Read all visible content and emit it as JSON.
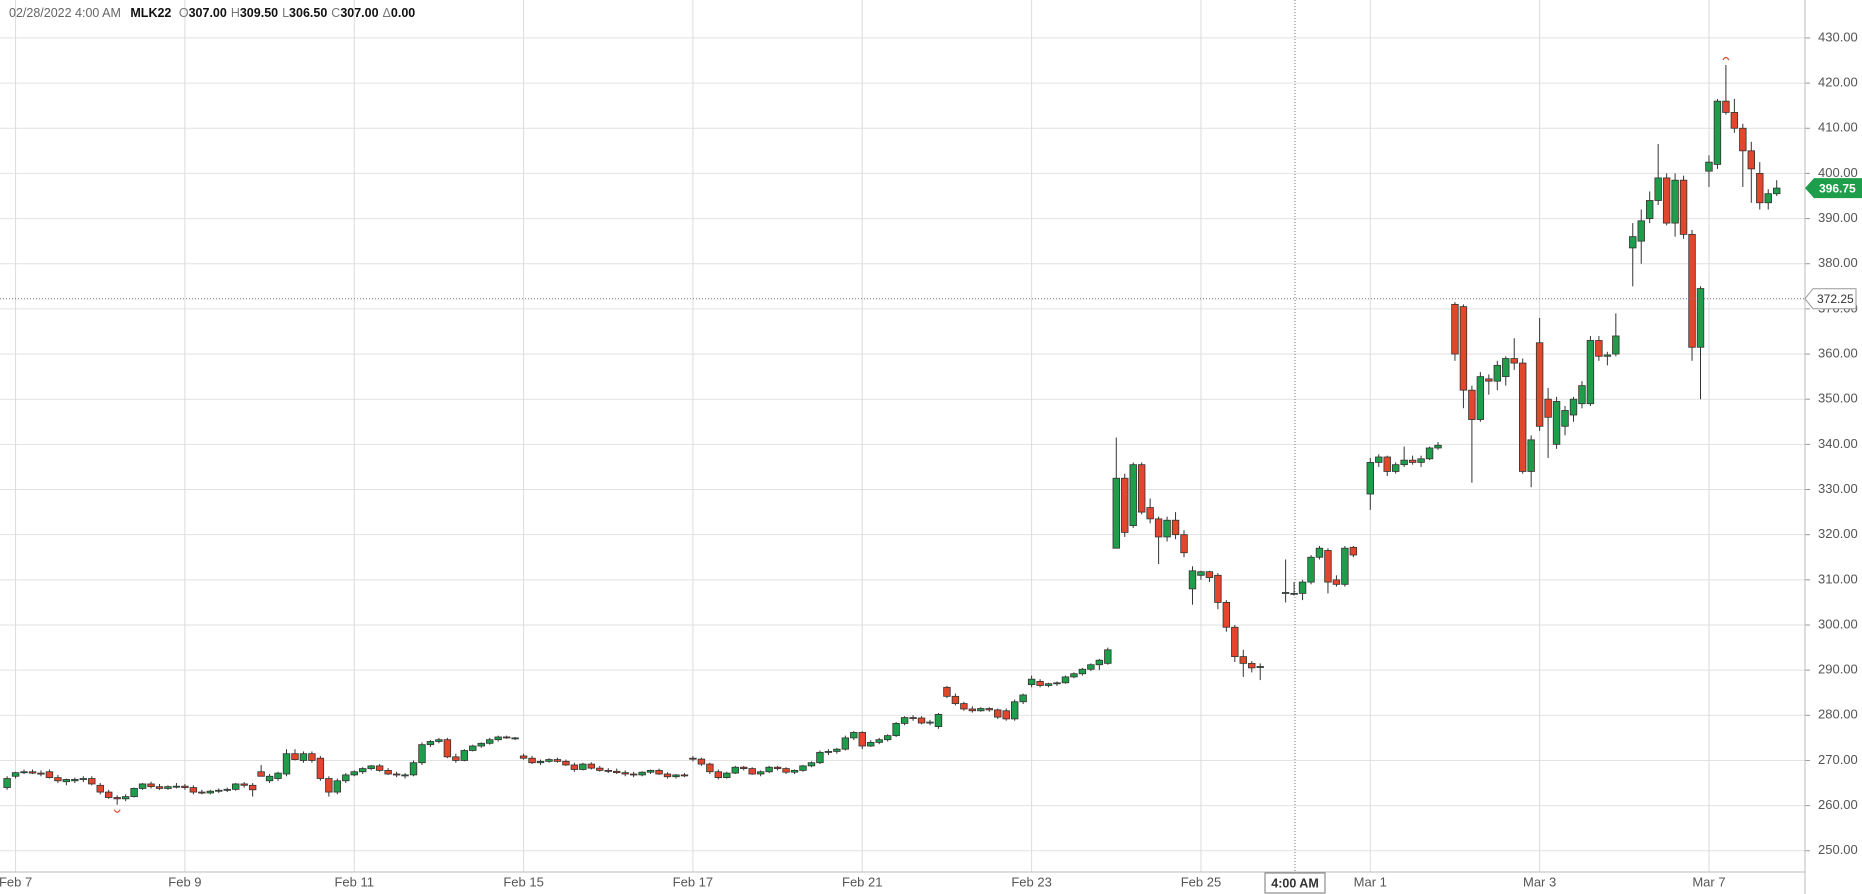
{
  "chart_data": {
    "type": "candlestick",
    "info": {
      "datetime": "02/28/2022 4:00 AM",
      "symbol": "MLK22",
      "fields": [
        {
          "key": "O",
          "text": "307.00"
        },
        {
          "key": "H",
          "text": "309.50"
        },
        {
          "key": "L",
          "text": "306.50"
        },
        {
          "key": "C",
          "text": "307.00"
        },
        {
          "key": "Δ",
          "text": "0.00"
        }
      ]
    },
    "categories": [
      null,
      "Feb 7",
      null,
      null,
      null,
      null,
      null,
      null,
      null,
      null,
      null,
      null,
      null,
      null,
      null,
      null,
      null,
      null,
      null,
      null,
      null,
      "Feb 9",
      null,
      null,
      null,
      null,
      null,
      null,
      null,
      null,
      null,
      null,
      null,
      null,
      null,
      null,
      null,
      null,
      null,
      null,
      null,
      "Feb 11",
      null,
      null,
      null,
      null,
      null,
      null,
      null,
      null,
      null,
      null,
      null,
      null,
      null,
      null,
      null,
      null,
      null,
      null,
      null,
      "Feb 15",
      null,
      null,
      null,
      null,
      null,
      null,
      null,
      null,
      null,
      null,
      null,
      null,
      null,
      null,
      null,
      null,
      null,
      null,
      null,
      "Feb 17",
      null,
      null,
      null,
      null,
      null,
      null,
      null,
      null,
      null,
      null,
      null,
      null,
      null,
      null,
      null,
      null,
      null,
      null,
      null,
      "Feb 21",
      null,
      null,
      null,
      null,
      null,
      null,
      null,
      null,
      null,
      null,
      null,
      null,
      null,
      null,
      null,
      null,
      null,
      null,
      null,
      "Feb 23",
      null,
      null,
      null,
      null,
      null,
      null,
      null,
      null,
      null,
      null,
      null,
      null,
      null,
      null,
      null,
      null,
      null,
      null,
      null,
      "Feb 25",
      null,
      null,
      null,
      null,
      null,
      null,
      null,
      null,
      null,
      null,
      null,
      null,
      null,
      null,
      null,
      null,
      null,
      null,
      null,
      "Mar 1",
      null,
      null,
      null,
      null,
      null,
      null,
      null,
      null,
      null,
      null,
      null,
      null,
      null,
      null,
      null,
      null,
      null,
      null,
      null,
      "Mar 3",
      null,
      null,
      null,
      null,
      null,
      null,
      null,
      null,
      null,
      null,
      null,
      null,
      null,
      null,
      null,
      null,
      null,
      null,
      null,
      "Mar 7",
      null,
      null,
      null,
      null,
      null,
      null,
      null,
      null
    ],
    "ohlc": [
      [
        264,
        266.5,
        263.5,
        266
      ],
      [
        266.5,
        267.5,
        266,
        267.3
      ],
      [
        267.3,
        268,
        267,
        267.5
      ],
      [
        267.5,
        268,
        267,
        267.2
      ],
      [
        267.2,
        267.8,
        266.5,
        267
      ],
      [
        267.5,
        268,
        266,
        266.2
      ],
      [
        266.2,
        266.8,
        265,
        265.5
      ],
      [
        265.3,
        266,
        264.5,
        265.8
      ],
      [
        265.5,
        266.2,
        265,
        265.8
      ],
      [
        265.8,
        266.5,
        265.2,
        266
      ],
      [
        266,
        266.5,
        264.5,
        264.8
      ],
      [
        264.5,
        265,
        262.5,
        263
      ],
      [
        263,
        263.5,
        261.5,
        261.8
      ],
      [
        261.8,
        262.3,
        260.2,
        261.5
      ],
      [
        261.5,
        262.5,
        261,
        262
      ],
      [
        262,
        264,
        261.8,
        263.8
      ],
      [
        263.8,
        265,
        263.5,
        264.8
      ],
      [
        264.8,
        265.3,
        263.8,
        264.2
      ],
      [
        264.2,
        264.8,
        263.5,
        263.8
      ],
      [
        263.8,
        264.5,
        263.5,
        264.2
      ],
      [
        264.2,
        265,
        263.8,
        264.3
      ],
      [
        264.3,
        264.8,
        263.5,
        264
      ],
      [
        264,
        264.5,
        262.5,
        263
      ],
      [
        263,
        263.5,
        262.5,
        262.8
      ],
      [
        262.8,
        263.5,
        262.5,
        263.2
      ],
      [
        263.2,
        263.8,
        262.8,
        263.4
      ],
      [
        263.4,
        264,
        263,
        263.6
      ],
      [
        263.6,
        265,
        263.3,
        264.8
      ],
      [
        264.8,
        265.2,
        264,
        264.5
      ],
      [
        264.5,
        265,
        262,
        263.5
      ],
      [
        267.5,
        269,
        266.5,
        266.5
      ],
      [
        265.5,
        267,
        265,
        266.5
      ],
      [
        266,
        267.5,
        265.5,
        267.2
      ],
      [
        267,
        272.5,
        266.5,
        271.5
      ],
      [
        271.5,
        272.5,
        270,
        270.2
      ],
      [
        270,
        272,
        269.5,
        271.5
      ],
      [
        271.5,
        272,
        269.5,
        270
      ],
      [
        270.5,
        271,
        265.5,
        266
      ],
      [
        266,
        266.5,
        262,
        263
      ],
      [
        263,
        266,
        262.5,
        265.5
      ],
      [
        265.5,
        267.2,
        265,
        266.8
      ],
      [
        266.8,
        267.8,
        266.5,
        267.5
      ],
      [
        267.5,
        268.5,
        267,
        268.2
      ],
      [
        268.2,
        269,
        267.8,
        268.8
      ],
      [
        268.8,
        269.2,
        267.5,
        267.8
      ],
      [
        267.8,
        268.3,
        266.8,
        267
      ],
      [
        267,
        267.5,
        266.3,
        266.8
      ],
      [
        266.8,
        267.2,
        266,
        266.8
      ],
      [
        266.8,
        270,
        266.5,
        269.5
      ],
      [
        269.5,
        274,
        269,
        273.5
      ],
      [
        273.5,
        274.5,
        273,
        274.2
      ],
      [
        274.2,
        275,
        273.8,
        274.6
      ],
      [
        274.6,
        275,
        270.5,
        270.8
      ],
      [
        270.8,
        271.5,
        269.5,
        270
      ],
      [
        270,
        272.5,
        269.8,
        272.2
      ],
      [
        272.2,
        273.5,
        272,
        273.2
      ],
      [
        273.2,
        274,
        272.8,
        273.8
      ],
      [
        273.8,
        275,
        273.5,
        274.6
      ],
      [
        274.6,
        275.5,
        274.2,
        275.2
      ],
      [
        275.2,
        275.5,
        274.8,
        275
      ],
      [
        274.8,
        275.2,
        274.5,
        275
      ],
      [
        271,
        271.5,
        270.2,
        270.5
      ],
      [
        270.5,
        271,
        269.2,
        269.5
      ],
      [
        269.5,
        270.2,
        269,
        269.8
      ],
      [
        269.8,
        270.5,
        269.5,
        270.2
      ],
      [
        270.2,
        270.6,
        269.5,
        269.8
      ],
      [
        269.8,
        270.2,
        268.8,
        269
      ],
      [
        269,
        269.5,
        267.5,
        268
      ],
      [
        268,
        269.5,
        267.8,
        269.2
      ],
      [
        269.2,
        269.6,
        268,
        268.3
      ],
      [
        268.3,
        268.8,
        267.5,
        267.8
      ],
      [
        267.8,
        268.3,
        267.2,
        267.6
      ],
      [
        267.6,
        268.2,
        267,
        267.3
      ],
      [
        267.3,
        267.8,
        266.5,
        267
      ],
      [
        267,
        267.5,
        266.3,
        266.8
      ],
      [
        266.8,
        267.6,
        266.5,
        267.4
      ],
      [
        267.4,
        268,
        267,
        267.8
      ],
      [
        267.8,
        268.2,
        266.8,
        267
      ],
      [
        267,
        267.4,
        266,
        266.4
      ],
      [
        266.4,
        267,
        266,
        266.8
      ],
      [
        266.8,
        267.2,
        266.3,
        266.6
      ],
      [
        270.5,
        271,
        269.8,
        270.3
      ],
      [
        270.3,
        270.6,
        268.8,
        269.2
      ],
      [
        269.2,
        269.5,
        267,
        267.5
      ],
      [
        267.5,
        268,
        265.8,
        266.2
      ],
      [
        266.2,
        267.5,
        266,
        267.2
      ],
      [
        267.2,
        268.8,
        267,
        268.5
      ],
      [
        268.5,
        268.8,
        267.8,
        268.2
      ],
      [
        268.2,
        268.5,
        266.8,
        267
      ],
      [
        267,
        267.8,
        266.5,
        267.5
      ],
      [
        267.5,
        268.8,
        267.2,
        268.5
      ],
      [
        268.5,
        268.8,
        267.8,
        268.2
      ],
      [
        268.2,
        268.5,
        267,
        267.4
      ],
      [
        267.4,
        268,
        267,
        267.8
      ],
      [
        267.8,
        269,
        267.5,
        268.8
      ],
      [
        268.8,
        269.8,
        268.5,
        269.5
      ],
      [
        269.5,
        272.2,
        269.2,
        271.8
      ],
      [
        271.8,
        272.5,
        271.2,
        272
      ],
      [
        272,
        272.8,
        271.5,
        272.5
      ],
      [
        272.5,
        275.5,
        272.2,
        275
      ],
      [
        275,
        276.5,
        274.5,
        276.2
      ],
      [
        276.2,
        276.5,
        272.5,
        273.2
      ],
      [
        273.2,
        274.5,
        273,
        274
      ],
      [
        274,
        275,
        273.6,
        274.6
      ],
      [
        274.6,
        275.8,
        274.2,
        275.5
      ],
      [
        275.5,
        278.5,
        275.2,
        278.2
      ],
      [
        278.2,
        279.8,
        277.8,
        279.5
      ],
      [
        279.5,
        280,
        278.8,
        279.4
      ],
      [
        279.4,
        279.8,
        278,
        278.3
      ],
      [
        278.3,
        279,
        277.8,
        278.5
      ],
      [
        277.5,
        280.5,
        277,
        280.2
      ],
      [
        286.2,
        286.5,
        283.8,
        284.2
      ],
      [
        284.2,
        284.8,
        282.2,
        282.6
      ],
      [
        282.6,
        283,
        281,
        281.4
      ],
      [
        281.4,
        282,
        280.6,
        281
      ],
      [
        281,
        281.8,
        280.8,
        281.5
      ],
      [
        281.5,
        281.8,
        280.8,
        281.2
      ],
      [
        281.2,
        281.5,
        279.2,
        279.6
      ],
      [
        281,
        281.5,
        278.8,
        279.2
      ],
      [
        279.2,
        283.5,
        278.8,
        283
      ],
      [
        283,
        284.8,
        282.5,
        284.5
      ],
      [
        286.8,
        288.8,
        286.2,
        288
      ],
      [
        287.5,
        288,
        286.2,
        286.6
      ],
      [
        286.6,
        287.2,
        286.2,
        287
      ],
      [
        287,
        287.5,
        286.5,
        287.2
      ],
      [
        287.2,
        288.8,
        287,
        288.5
      ],
      [
        288.5,
        289.5,
        288.2,
        289.2
      ],
      [
        289.2,
        290.5,
        288.8,
        290.2
      ],
      [
        290.2,
        291.5,
        289.8,
        291.2
      ],
      [
        291.2,
        292.5,
        290,
        292.2
      ],
      [
        291.5,
        295,
        291.2,
        294.5
      ],
      [
        317,
        341.5,
        317,
        332.5
      ],
      [
        332.5,
        333.5,
        319.5,
        320.5
      ],
      [
        322,
        336,
        321.5,
        335.5
      ],
      [
        335.5,
        336,
        324.5,
        325
      ],
      [
        326,
        328,
        322.5,
        323.5
      ],
      [
        323.5,
        324,
        313.5,
        319.5
      ],
      [
        319.5,
        324,
        318.5,
        323.2
      ],
      [
        323.2,
        325,
        319,
        320
      ],
      [
        320,
        321,
        315,
        316
      ],
      [
        308,
        313,
        304.5,
        312
      ],
      [
        311,
        312,
        310,
        311.8
      ],
      [
        311.8,
        312,
        309.5,
        310.5
      ],
      [
        311,
        311.5,
        303.5,
        305
      ],
      [
        305,
        305.5,
        298.5,
        299.5
      ],
      [
        299.5,
        300,
        291.8,
        293
      ],
      [
        293,
        294.5,
        288.5,
        291.5
      ],
      [
        291.5,
        292,
        289.5,
        290.5
      ],
      [
        290.8,
        291.5,
        287.8,
        290.8
      ],
      null,
      null,
      [
        307,
        314.5,
        305,
        307.2
      ],
      [
        307,
        309.5,
        306.5,
        307
      ],
      [
        307,
        310,
        305.5,
        309.5
      ],
      [
        309.5,
        315.5,
        309,
        315
      ],
      [
        315,
        317.5,
        314.5,
        317
      ],
      [
        316.5,
        317,
        307,
        309.5
      ],
      [
        310,
        311,
        308.5,
        309
      ],
      [
        309,
        317.5,
        308.5,
        317
      ],
      [
        317.2,
        317.5,
        315,
        315.5
      ],
      null,
      [
        329,
        337,
        325.5,
        336
      ],
      [
        336,
        337.8,
        335,
        337.2
      ],
      [
        337.2,
        337.5,
        333,
        334
      ],
      [
        334,
        336,
        333.5,
        335.5
      ],
      [
        335.5,
        339.5,
        335,
        336.5
      ],
      [
        336.5,
        337.5,
        335.5,
        336
      ],
      [
        336,
        337.5,
        335,
        336.8
      ],
      [
        336.8,
        339.5,
        336.5,
        339.2
      ],
      [
        339.2,
        340.5,
        338.8,
        339.8
      ],
      null,
      [
        371,
        371.5,
        358.5,
        360
      ],
      [
        370.5,
        371,
        348,
        352
      ],
      [
        352,
        353,
        331.5,
        345.5
      ],
      [
        345.5,
        356,
        345,
        355
      ],
      [
        354.5,
        355.5,
        351,
        354
      ],
      [
        354,
        358.5,
        352,
        357.5
      ],
      [
        355,
        359.5,
        353,
        359
      ],
      [
        359,
        363.5,
        356.5,
        358
      ],
      [
        358,
        359,
        333.5,
        334
      ],
      [
        334,
        342,
        330.5,
        341
      ],
      [
        362.5,
        368,
        343,
        344
      ],
      [
        350,
        352.5,
        337,
        346
      ],
      [
        340,
        350.5,
        339,
        349.5
      ],
      [
        344,
        348.5,
        342,
        347.5
      ],
      [
        346.5,
        350.5,
        345,
        350
      ],
      [
        349,
        354,
        348,
        353
      ],
      [
        349,
        364,
        348.5,
        363
      ],
      [
        363,
        364,
        358.5,
        359.5
      ],
      [
        359.5,
        360.5,
        357.5,
        359.8
      ],
      [
        360,
        369,
        359.5,
        364
      ],
      null,
      [
        383.5,
        389,
        375,
        386
      ],
      [
        385,
        392,
        380,
        389.5
      ],
      [
        390,
        396,
        389,
        394
      ],
      [
        394,
        406.5,
        393,
        399
      ],
      [
        399,
        400,
        388.5,
        389
      ],
      [
        389,
        400,
        386,
        398.5
      ],
      [
        398.5,
        399.5,
        385.5,
        386.5
      ],
      [
        386.5,
        387.5,
        358.5,
        361.5
      ],
      [
        361.5,
        375,
        350,
        374.5
      ],
      [
        400.5,
        404,
        397,
        402.5
      ],
      [
        402,
        416.5,
        401,
        416
      ],
      [
        416,
        424,
        413,
        413.5
      ],
      [
        413.5,
        416.5,
        409,
        410
      ],
      [
        410,
        411,
        397,
        405
      ],
      [
        405,
        407,
        393.5,
        401
      ],
      [
        400,
        402.5,
        392,
        393.5
      ],
      [
        393.5,
        396.5,
        392,
        395.5
      ],
      [
        395.5,
        398.5,
        395,
        396.75
      ]
    ],
    "up_color": "#1e9e4a",
    "down_color": "#e2462c",
    "ylim": [
      245.3,
      438.4
    ],
    "yticks": [
      {
        "value": 250,
        "label": "250.00"
      },
      {
        "value": 260,
        "label": "260.00"
      },
      {
        "value": 270,
        "label": "270.00"
      },
      {
        "value": 280,
        "label": "280.00"
      },
      {
        "value": 290,
        "label": "290.00"
      },
      {
        "value": 300,
        "label": "300.00"
      },
      {
        "value": 310,
        "label": "310.00"
      },
      {
        "value": 320,
        "label": "320.00"
      },
      {
        "value": 330,
        "label": "330.00"
      },
      {
        "value": 340,
        "label": "340.00"
      },
      {
        "value": 350,
        "label": "350.00"
      },
      {
        "value": 360,
        "label": "360.00"
      },
      {
        "value": 370,
        "label": "370.00"
      },
      {
        "value": 380,
        "label": "380.00"
      },
      {
        "value": 390,
        "label": "390.00"
      },
      {
        "value": 400,
        "label": "400.00"
      },
      {
        "value": 410,
        "label": "410.00"
      },
      {
        "value": 420,
        "label": "420.00"
      },
      {
        "value": 430,
        "label": "430.00"
      }
    ],
    "grid": true,
    "last_price": 396.75,
    "crosshair": {
      "x_label": "4:00 AM",
      "y_value": 372.25
    }
  }
}
